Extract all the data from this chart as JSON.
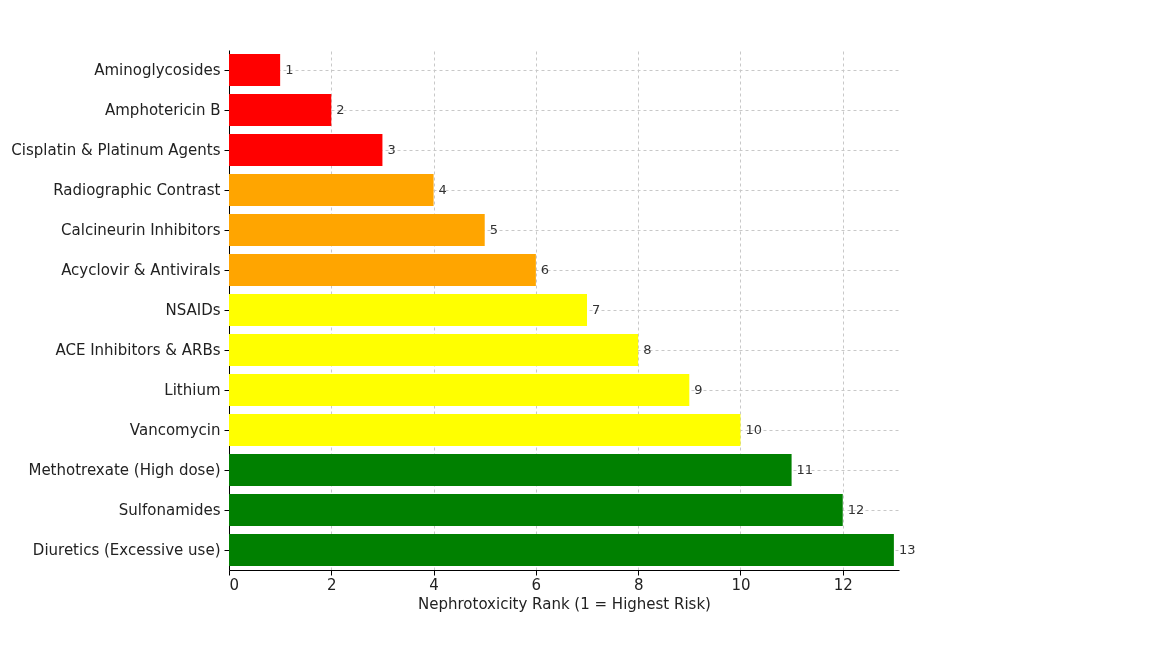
{
  "chart_data": {
    "type": "bar",
    "orientation": "horizontal",
    "xlabel": "Nephrotoxicity Rank (1 = Highest Risk)",
    "categories": [
      "Aminoglycosides",
      "Amphotericin B",
      "Cisplatin & Platinum Agents",
      "Radiographic Contrast",
      "Calcineurin Inhibitors",
      "Acyclovir & Antivirals",
      "NSAIDs",
      "ACE Inhibitors & ARBs",
      "Lithium",
      "Vancomycin",
      "Methotrexate (High dose)",
      "Sulfonamides",
      "Diuretics (Excessive use)"
    ],
    "values": [
      1,
      2,
      3,
      4,
      5,
      6,
      7,
      8,
      9,
      10,
      11,
      12,
      13
    ],
    "colors": [
      "#ff0000",
      "#ff0000",
      "#ff0000",
      "#ffa500",
      "#ffa500",
      "#ffa500",
      "#ffff00",
      "#ffff00",
      "#ffff00",
      "#ffff00",
      "#008000",
      "#008000",
      "#008000"
    ],
    "xlim": [
      0,
      13.1
    ],
    "xticks": [
      0,
      2,
      4,
      6,
      8,
      10,
      12
    ],
    "grid": true,
    "data_labels": true
  }
}
